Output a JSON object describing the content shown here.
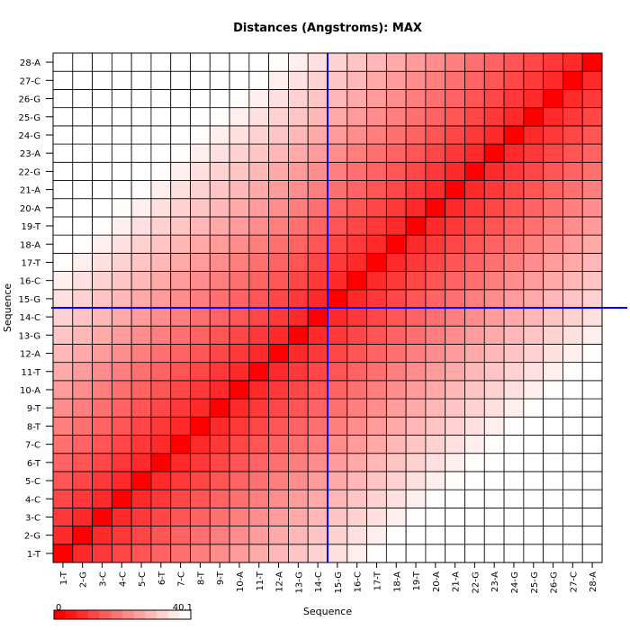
{
  "chart_data": {
    "type": "heatmap",
    "title": "Distances (Angstroms):  MAX",
    "xlabel": "Sequence",
    "ylabel": "Sequence",
    "categories": [
      "1-T",
      "2-G",
      "3-C",
      "4-C",
      "5-C",
      "6-T",
      "7-C",
      "8-T",
      "9-T",
      "10-A",
      "11-T",
      "12-A",
      "13-G",
      "14-C",
      "15-G",
      "16-C",
      "17-T",
      "18-A",
      "19-T",
      "20-A",
      "21-A",
      "22-G",
      "23-A",
      "24-G",
      "25-G",
      "26-G",
      "27-C",
      "28-A"
    ],
    "color_scale": {
      "min": 0,
      "max": 40.1,
      "min_color": "#ff0000",
      "max_color": "#ffffff"
    },
    "colorbar_labels": {
      "min": "0",
      "max": "40.1"
    },
    "crosshair": {
      "x_between": [
        "14-C",
        "15-G"
      ],
      "y_between": [
        "14-C",
        "15-G"
      ],
      "color": "#0000ff"
    },
    "diagonal_value": 0,
    "distance_model": {
      "description": "approximate distance grows with sequence separation |i-j|",
      "max_value": 40.1
    }
  }
}
